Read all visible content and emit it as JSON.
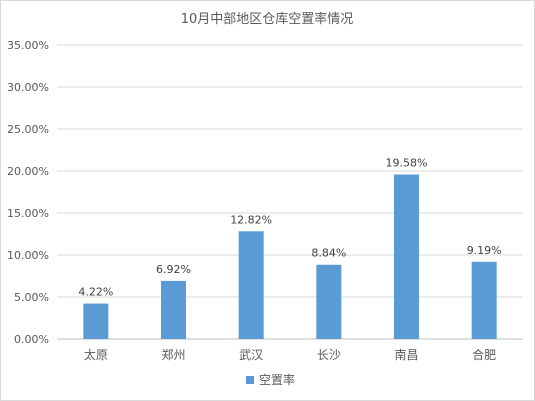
{
  "chart_data": {
    "type": "bar",
    "title": "10月中部地区仓库空置率情况",
    "categories": [
      "太原",
      "郑州",
      "武汉",
      "长沙",
      "南昌",
      "合肥"
    ],
    "series": [
      {
        "name": "空置率",
        "values": [
          4.22,
          6.92,
          12.82,
          8.84,
          19.58,
          9.19
        ],
        "labels": [
          "4.22%",
          "6.92%",
          "12.82%",
          "8.84%",
          "19.58%",
          "9.19%"
        ],
        "color": "#5b9bd5"
      }
    ],
    "ylim": [
      0,
      35
    ],
    "yticks": [
      0,
      5,
      10,
      15,
      20,
      25,
      30,
      35
    ],
    "ytick_labels": [
      "0.00%",
      "5.00%",
      "10.00%",
      "15.00%",
      "20.00%",
      "25.00%",
      "30.00%",
      "35.00%"
    ],
    "grid": true,
    "legend_position": "bottom"
  }
}
